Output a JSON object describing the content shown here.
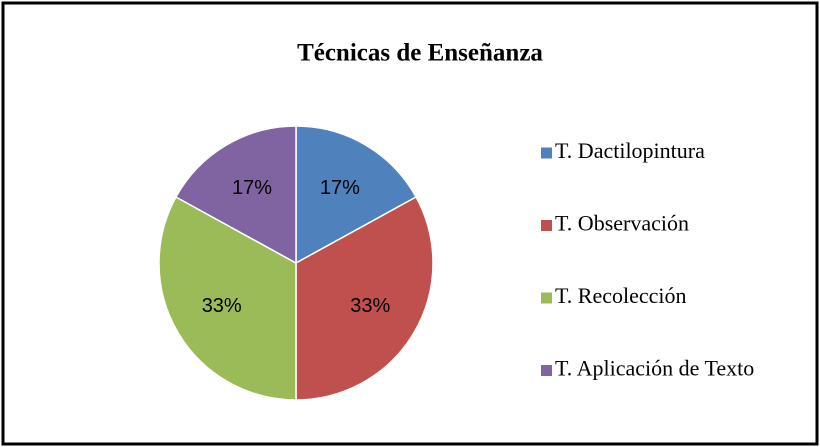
{
  "chart_data": {
    "type": "pie",
    "title": "Técnicas de Enseñanza",
    "categories": [
      "T. Dactilopintura",
      "T. Observación",
      "T. Recolección",
      "T. Aplicación de Texto"
    ],
    "values": [
      17,
      33,
      33,
      17
    ],
    "value_labels": [
      "17%",
      "33%",
      "33%",
      "17%"
    ],
    "colors": [
      "#4f81bd",
      "#c0504d",
      "#9bbb59",
      "#8064a2"
    ],
    "legend": "right"
  }
}
